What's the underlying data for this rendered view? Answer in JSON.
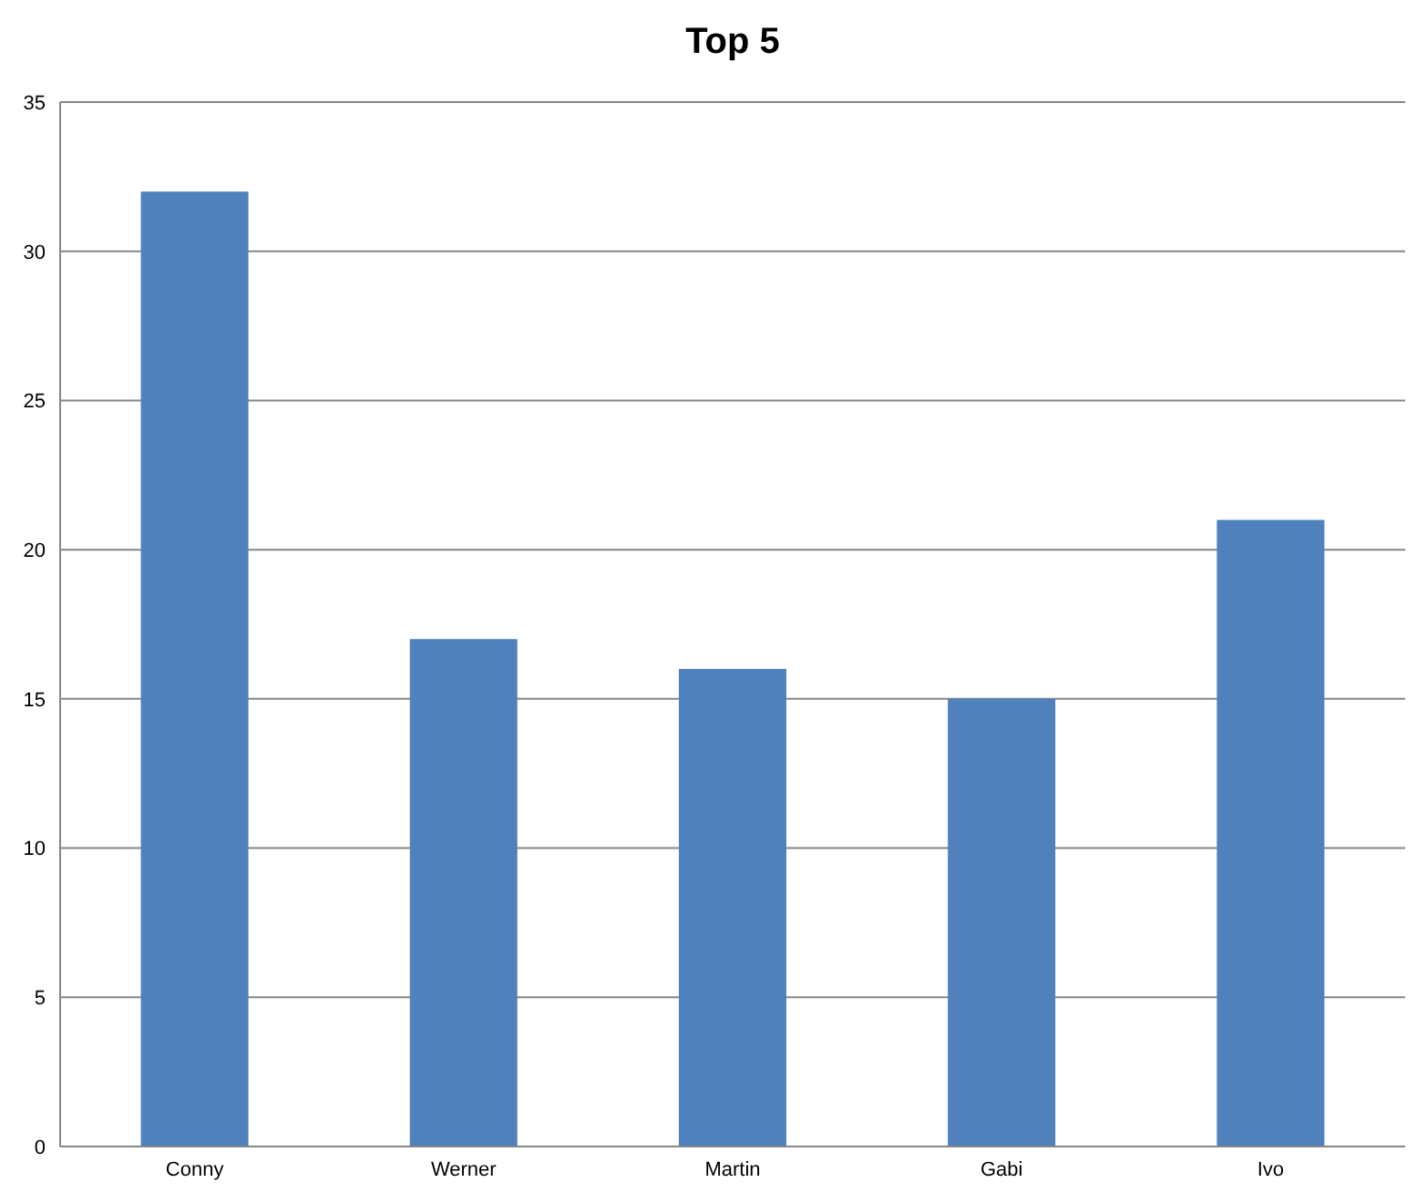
{
  "chart_data": {
    "type": "bar",
    "title": "Top 5",
    "categories": [
      "Conny",
      "Werner",
      "Martin",
      "Gabi",
      "Ivo"
    ],
    "values": [
      32,
      17,
      16,
      15,
      21
    ],
    "color": "#4f81bd",
    "ylim": [
      0,
      35
    ],
    "yticks": [
      0,
      5,
      10,
      15,
      20,
      25,
      30,
      35
    ],
    "grid": "y",
    "legend": false
  }
}
